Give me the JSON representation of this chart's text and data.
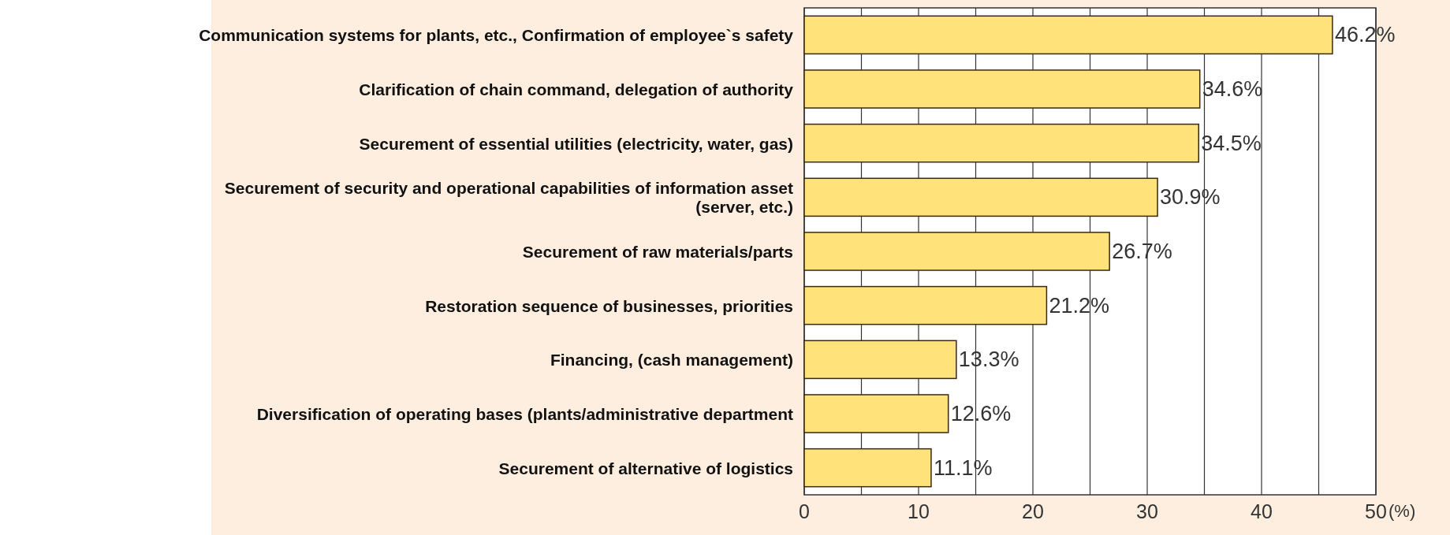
{
  "chart_data": {
    "type": "bar",
    "orientation": "horizontal",
    "xlabel": "(%)",
    "categories": [
      "Communication systems for plants, etc., Confirmation of employee`s safety",
      "Clarification of chain command, delegation of authority",
      "Securement of essential utilities (electricity, water, gas)",
      "Securement of security and operational capabilities of information asset (server, etc.)",
      "Securement of raw materials/parts",
      "Restoration sequence of businesses, priorities",
      "Financing, (cash management)",
      "Diversification of operating bases (plants/administrative department",
      "Securement of alternative of logistics"
    ],
    "values": [
      46.2,
      34.6,
      34.5,
      30.9,
      26.7,
      21.2,
      13.3,
      12.6,
      11.1
    ],
    "value_labels": [
      "46.2%",
      "34.6%",
      "34.5%",
      "30.9%",
      "26.7%",
      "21.2%",
      "13.3%",
      "12.6%",
      "11.1%"
    ],
    "color": "#ffe27a",
    "xlim": [
      0,
      50
    ],
    "xticks": [
      0,
      {
        "value": 5,
        "label": null
      },
      10,
      {
        "value": 15,
        "label": null
      },
      20,
      {
        "value": 25,
        "label": null
      },
      30,
      {
        "value": 35,
        "label": null
      },
      40,
      {
        "value": 45,
        "label": null
      },
      50
    ],
    "grid": true
  }
}
